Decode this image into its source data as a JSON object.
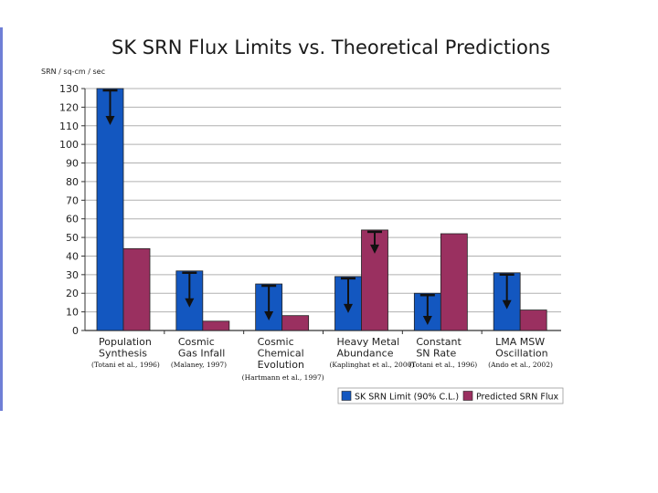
{
  "colors": {
    "limit": "#1357c0",
    "predicted": "#9a3060",
    "grid": "#b0b0b0",
    "left_rule": "#6f7fd6"
  },
  "chart_data": {
    "type": "bar",
    "title": "SK SRN Flux Limits vs. Theoretical Predictions",
    "ylabel": "SRN / sq-cm / sec",
    "xlabel": "",
    "ylim": [
      0,
      130
    ],
    "yticks": [
      0,
      10,
      20,
      30,
      40,
      50,
      60,
      70,
      80,
      90,
      100,
      110,
      120,
      130
    ],
    "grid": true,
    "legend_position": "bottom-right",
    "categories": [
      {
        "lines": [
          "Population",
          "Synthesis"
        ],
        "ref": "(Totani et al., 1996)"
      },
      {
        "lines": [
          "Cosmic",
          "Gas Infall"
        ],
        "ref": "(Malaney, 1997)"
      },
      {
        "lines": [
          "Cosmic",
          "Chemical",
          "Evolution"
        ],
        "ref": "(Hartmann et al., 1997)"
      },
      {
        "lines": [
          "Heavy Metal",
          "Abundance"
        ],
        "ref": "(Kaplinghat et al., 2000)"
      },
      {
        "lines": [
          "Constant",
          "SN Rate"
        ],
        "ref": "(Totani et al., 1996)"
      },
      {
        "lines": [
          "LMA MSW",
          "Oscillation"
        ],
        "ref": "(Ando et al., 2002)"
      }
    ],
    "series": [
      {
        "name": "SK SRN Limit (90% C.L.)",
        "values": [
          130,
          32,
          25,
          29,
          20,
          31
        ],
        "upper_limit_arrows": true
      },
      {
        "name": "Predicted SRN Flux",
        "values": [
          44,
          5,
          8,
          54,
          52,
          11
        ],
        "upper_limit_arrows": false
      }
    ],
    "extra_arrow_on_predicted": [
      3
    ]
  }
}
